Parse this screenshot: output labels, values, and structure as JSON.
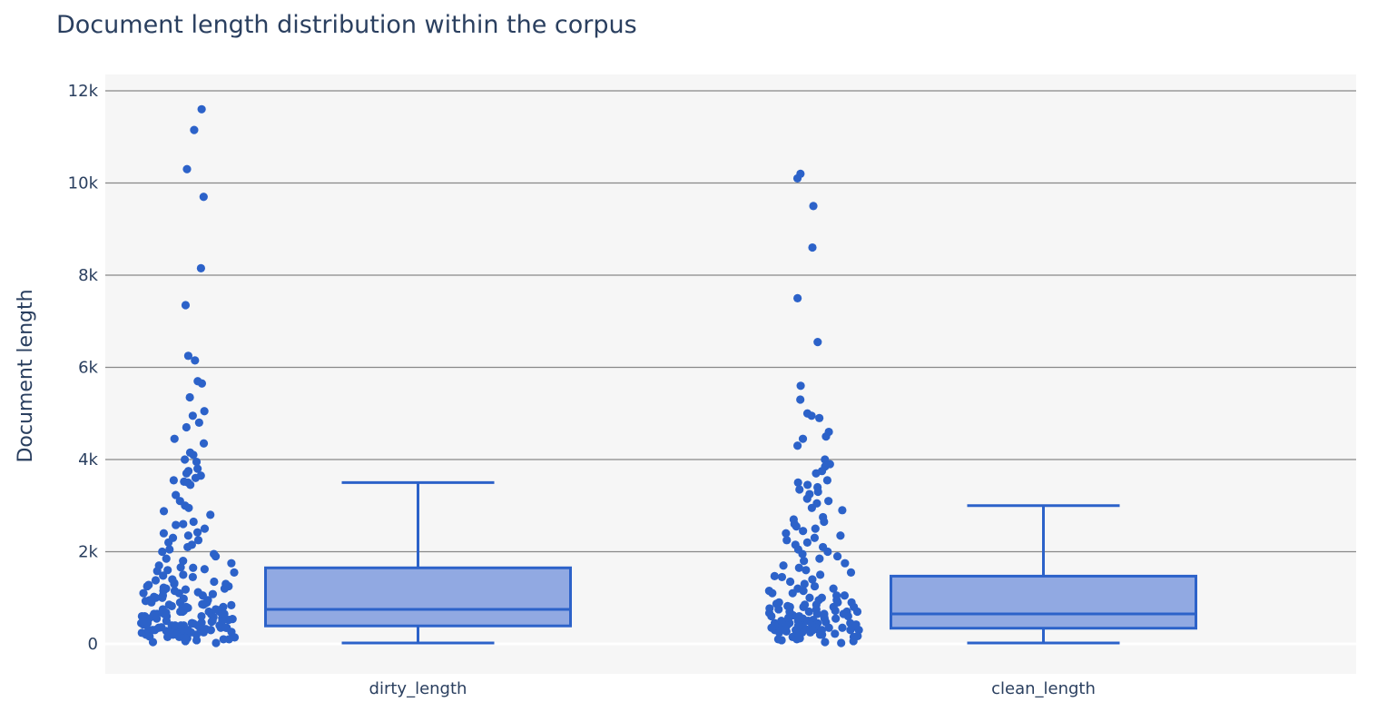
{
  "chart_data": {
    "type": "box",
    "title": "Document length distribution within the corpus",
    "xlabel": "",
    "ylabel": "Document length",
    "ylim": [
      -600,
      12000
    ],
    "yticks": [
      0,
      2000,
      4000,
      6000,
      8000,
      10000,
      12000
    ],
    "ytick_labels": [
      "0",
      "2k",
      "4k",
      "6k",
      "8k",
      "10k",
      "12k"
    ],
    "categories": [
      "dirty_length",
      "clean_length"
    ],
    "grid": true,
    "legend": "none",
    "colors": {
      "box_line": "#2c62c9",
      "box_fill": "#91a9e2",
      "points": "#2c62c9",
      "plot_bg": "#f6f6f6",
      "grid": "#888888",
      "text": "#2a3f5f"
    },
    "series": [
      {
        "category": "dirty_length",
        "min": 20,
        "q1": 390,
        "median": 750,
        "q3": 1650,
        "upper_fence": 3500,
        "outliers_high": [
          11600,
          11150,
          10300,
          9700,
          8150,
          7350,
          6250,
          6150,
          5700,
          5650,
          5350,
          5050,
          4950,
          4800,
          4700,
          4450,
          4350,
          4150,
          4100,
          4000,
          3950,
          3800,
          3750,
          3700,
          3650,
          3600,
          3550,
          3520
        ],
        "points": [
          3500,
          3450,
          3230,
          3100,
          3000,
          2950,
          2880,
          2800,
          2650,
          2600,
          2580,
          2500,
          2420,
          2400,
          2350,
          2300,
          2250,
          2200,
          2150,
          2100,
          2050,
          2000,
          1950,
          1900,
          1850,
          1800,
          1750,
          1700,
          1660,
          1650,
          1620,
          1600,
          1580,
          1550,
          1500,
          1480,
          1450,
          1400,
          1380,
          1350,
          1320,
          1300,
          1280,
          1250,
          1220,
          1200,
          1180,
          1150,
          1120,
          1100,
          1080,
          1050,
          1020,
          1000,
          980,
          950,
          930,
          900,
          880,
          860,
          840,
          820,
          800,
          780,
          760,
          740,
          720,
          700,
          680,
          660,
          640,
          620,
          600,
          580,
          560,
          540,
          520,
          500,
          480,
          460,
          440,
          420,
          400,
          380,
          360,
          340,
          320,
          300,
          280,
          260,
          240,
          220,
          200,
          180,
          160,
          140,
          120,
          100,
          80,
          60,
          40,
          20,
          1300,
          1200,
          1100,
          1000,
          950,
          900,
          850,
          800,
          750,
          700,
          650,
          600,
          550,
          500,
          450,
          400,
          350,
          300,
          250,
          200,
          150,
          120,
          1250,
          1150,
          1050,
          850,
          750,
          650,
          550,
          450,
          350,
          250,
          150,
          900,
          800,
          700,
          600,
          500,
          400,
          300,
          200,
          100,
          700,
          600,
          500,
          400,
          300,
          650,
          550,
          450,
          350,
          250,
          500,
          400,
          300,
          200,
          450,
          350,
          250,
          400,
          300,
          350,
          250,
          300
        ]
      },
      {
        "category": "clean_length",
        "min": 20,
        "q1": 340,
        "median": 650,
        "q3": 1470,
        "upper_fence": 3000,
        "outliers_high": [
          10200,
          10100,
          9500,
          8600,
          7500,
          6550,
          5600,
          5300,
          5000,
          4950,
          4900,
          4600,
          4500,
          4450,
          4300,
          4000,
          3900,
          3850,
          3750,
          3700,
          3550,
          3500,
          3450,
          3400,
          3350,
          3300,
          3250,
          3150,
          3100,
          3050
        ],
        "points": [
          2950,
          2900,
          2750,
          2700,
          2650,
          2600,
          2550,
          2500,
          2450,
          2400,
          2350,
          2300,
          2250,
          2200,
          2150,
          2100,
          2050,
          2000,
          1950,
          1900,
          1850,
          1800,
          1750,
          1700,
          1650,
          1600,
          1550,
          1500,
          1470,
          1450,
          1400,
          1350,
          1300,
          1250,
          1200,
          1150,
          1100,
          1050,
          1000,
          950,
          900,
          870,
          850,
          820,
          800,
          770,
          750,
          720,
          700,
          670,
          650,
          620,
          600,
          570,
          550,
          520,
          500,
          470,
          450,
          420,
          400,
          370,
          350,
          320,
          300,
          270,
          250,
          220,
          200,
          170,
          150,
          120,
          100,
          80,
          60,
          40,
          20,
          1200,
          1100,
          1000,
          900,
          800,
          700,
          600,
          500,
          400,
          300,
          200,
          100,
          1150,
          1050,
          950,
          850,
          750,
          650,
          550,
          450,
          350,
          250,
          150,
          900,
          800,
          700,
          600,
          500,
          400,
          300,
          200,
          800,
          700,
          600,
          500,
          400,
          300,
          650,
          550,
          450,
          350,
          250,
          500,
          400,
          300,
          450,
          350,
          250,
          400,
          300,
          350,
          300
        ]
      }
    ]
  }
}
